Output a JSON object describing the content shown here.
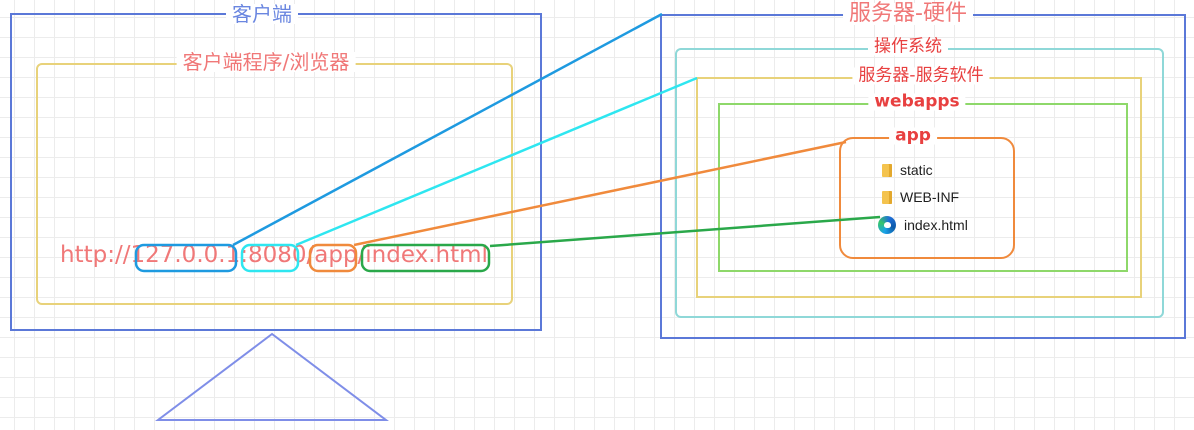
{
  "client": {
    "title": "客户端",
    "program_title": "客户端程序/浏览器"
  },
  "url": {
    "protocol": "http://",
    "host": "127.0.0.1",
    "sep1": ":",
    "port": "8080",
    "sep2": "/",
    "app": "app",
    "sep3": "/",
    "file": "index.html"
  },
  "server": {
    "title": "服务器-硬件",
    "os_title": "操作系统",
    "software_title": "服务器-服务软件",
    "webapps_title": "webapps",
    "app_title": "app",
    "files": [
      {
        "name": "static",
        "icon": "folder-icon"
      },
      {
        "name": "WEB-INF",
        "icon": "folder-icon"
      },
      {
        "name": "index.html",
        "icon": "edge-browser-icon"
      }
    ]
  },
  "colors": {
    "hardware": "#5b78d8",
    "program": "#e8d27a",
    "os": "#8fd8d8",
    "server_software": "#e8d27a",
    "webapps": "#8ed86a",
    "app": "#f08a3c",
    "text_red": "#f07878",
    "line_blue": "#1e9ae0",
    "line_cyan": "#2ee6f0",
    "line_orange": "#f08a3c",
    "line_green": "#2aa84a"
  }
}
